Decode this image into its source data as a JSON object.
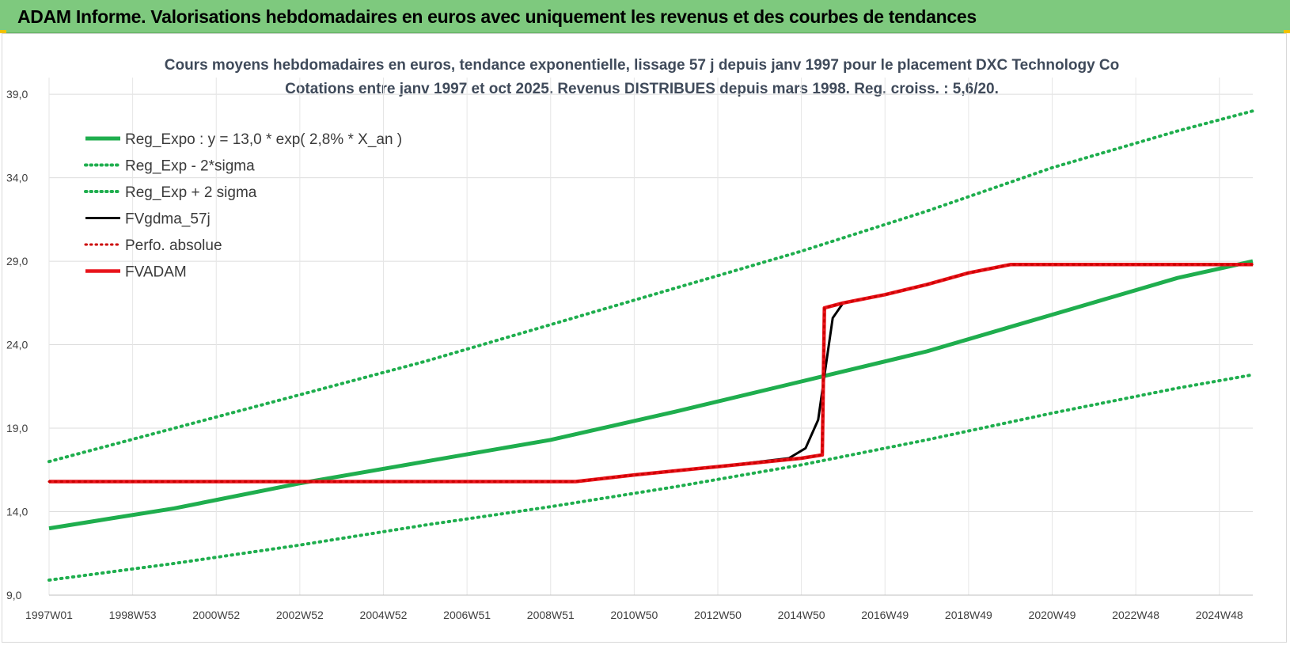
{
  "header": {
    "title": "ADAM Informe. Valorisations hebdomadaires en euros avec uniquement les revenus et des courbes de tendances"
  },
  "chart_data": {
    "type": "line",
    "title": "Cours moyens hebdomadaires en euros, tendance exponentielle, lissage 57 j depuis janv 1997 pour le placement DXC Technology Co",
    "subtitle": "Cotations entre janv 1997 et oct 2025. Revenus DISTRIBUES depuis mars 1998. Reg. croiss. : 5,6/20.",
    "xlabel": "",
    "ylabel": "",
    "x_range": [
      1997.0,
      2025.8
    ],
    "ylim": [
      9,
      40
    ],
    "y_ticks": [
      9,
      14,
      19,
      24,
      29,
      34,
      39
    ],
    "y_tick_labels": [
      "9,0",
      "14,0",
      "19,0",
      "24,0",
      "29,0",
      "34,0",
      "39,0"
    ],
    "x_ticks": [
      1997.0,
      1999.0,
      2001.0,
      2003.0,
      2005.0,
      2007.0,
      2009.0,
      2011.0,
      2013.0,
      2015.0,
      2017.0,
      2019.0,
      2021.0,
      2023.0,
      2025.0
    ],
    "x_tick_labels": [
      "1997W01",
      "1998W53",
      "2000W52",
      "2002W52",
      "2004W52",
      "2006W51",
      "2008W51",
      "2010W50",
      "2012W50",
      "2014W50",
      "2016W49",
      "2018W49",
      "2020W49",
      "2022W48",
      "2024W48"
    ],
    "grid": true,
    "legend_position": "top-left",
    "series": [
      {
        "name": "Reg_Expo : y = 13,0 * exp( 2,8% *  X_an )",
        "color": "#1fae4e",
        "style": "solid",
        "x": [
          1997.0,
          2000.0,
          2003.0,
          2006.0,
          2009.0,
          2012.0,
          2015.0,
          2018.0,
          2021.0,
          2024.0,
          2025.8
        ],
        "y": [
          13.0,
          14.2,
          15.7,
          17.0,
          18.3,
          20.0,
          21.8,
          23.6,
          25.8,
          28.0,
          29.0
        ]
      },
      {
        "name": "Reg_Exp - 2*sigma",
        "color": "#1fae4e",
        "style": "dotted",
        "x": [
          1997.0,
          2000.0,
          2003.0,
          2006.0,
          2009.0,
          2012.0,
          2015.0,
          2018.0,
          2021.0,
          2024.0,
          2025.8
        ],
        "y": [
          9.9,
          10.9,
          12.0,
          13.2,
          14.3,
          15.5,
          16.8,
          18.3,
          19.9,
          21.4,
          22.2
        ]
      },
      {
        "name": "Reg_Exp + 2 sigma",
        "color": "#1fae4e",
        "style": "dotted",
        "x": [
          1997.0,
          2000.0,
          2003.0,
          2006.0,
          2009.0,
          2012.0,
          2015.0,
          2018.0,
          2021.0,
          2024.0,
          2025.8
        ],
        "y": [
          17.0,
          19.0,
          21.0,
          23.0,
          25.2,
          27.4,
          29.6,
          32.0,
          34.6,
          36.8,
          38.0
        ]
      },
      {
        "name": "FVgdma_57j",
        "color": "#000000",
        "style": "solid",
        "x": [
          1997.0,
          2009.6,
          2011.0,
          2013.0,
          2014.7,
          2015.1,
          2015.4,
          2015.6,
          2015.75,
          2016.0,
          2017.0,
          2018.0,
          2019.0,
          2020.0,
          2025.8
        ],
        "y": [
          15.8,
          15.8,
          16.2,
          16.7,
          17.2,
          17.8,
          19.5,
          23.0,
          25.6,
          26.5,
          27.0,
          27.6,
          28.3,
          28.8,
          28.8
        ]
      },
      {
        "name": "Perfo. absolue",
        "color": "#cc0000",
        "style": "dotted",
        "x": [
          1997.0,
          2009.6,
          2011.0,
          2013.0,
          2015.0,
          2015.5,
          2015.55,
          2016.0,
          2017.0,
          2018.0,
          2019.0,
          2020.0,
          2025.8
        ],
        "y": [
          15.8,
          15.8,
          16.2,
          16.7,
          17.2,
          17.4,
          26.2,
          26.5,
          27.0,
          27.6,
          28.3,
          28.8,
          28.8
        ]
      },
      {
        "name": "FVADAM",
        "color": "#e8141b",
        "style": "solid",
        "x": [
          1997.0,
          2009.6,
          2011.0,
          2013.0,
          2015.0,
          2015.5,
          2015.55,
          2016.0,
          2017.0,
          2018.0,
          2019.0,
          2020.0,
          2025.8
        ],
        "y": [
          15.8,
          15.8,
          16.2,
          16.7,
          17.2,
          17.4,
          26.2,
          26.5,
          27.0,
          27.6,
          28.3,
          28.8,
          28.8
        ]
      }
    ]
  }
}
